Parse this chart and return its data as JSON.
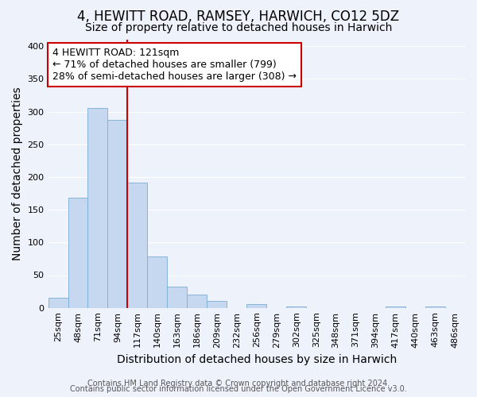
{
  "title": "4, HEWITT ROAD, RAMSEY, HARWICH, CO12 5DZ",
  "subtitle": "Size of property relative to detached houses in Harwich",
  "xlabel": "Distribution of detached houses by size in Harwich",
  "ylabel": "Number of detached properties",
  "bin_labels": [
    "25sqm",
    "48sqm",
    "71sqm",
    "94sqm",
    "117sqm",
    "140sqm",
    "163sqm",
    "186sqm",
    "209sqm",
    "232sqm",
    "256sqm",
    "279sqm",
    "302sqm",
    "325sqm",
    "348sqm",
    "371sqm",
    "394sqm",
    "417sqm",
    "440sqm",
    "463sqm",
    "486sqm"
  ],
  "bin_values": [
    16,
    168,
    305,
    287,
    191,
    79,
    32,
    20,
    11,
    0,
    6,
    0,
    2,
    0,
    0,
    0,
    0,
    2,
    0,
    2,
    0
  ],
  "bar_color": "#c5d8f0",
  "bar_edge_color": "#7aadd4",
  "vline_color": "#cc0000",
  "vline_x": 3.5,
  "annotation_line1": "4 HEWITT ROAD: 121sqm",
  "annotation_line2": "← 71% of detached houses are smaller (799)",
  "annotation_line3": "28% of semi-detached houses are larger (308) →",
  "annotation_box_color": "#ffffff",
  "annotation_box_edge": "#cc0000",
  "ylim": [
    0,
    410
  ],
  "yticks": [
    0,
    50,
    100,
    150,
    200,
    250,
    300,
    350,
    400
  ],
  "footer1": "Contains HM Land Registry data © Crown copyright and database right 2024.",
  "footer2": "Contains public sector information licensed under the Open Government Licence v3.0.",
  "bg_color": "#eef2fa",
  "grid_color": "#ffffff",
  "title_fontsize": 12,
  "subtitle_fontsize": 10,
  "axis_label_fontsize": 10,
  "tick_fontsize": 8,
  "annotation_fontsize": 9,
  "footer_fontsize": 7
}
